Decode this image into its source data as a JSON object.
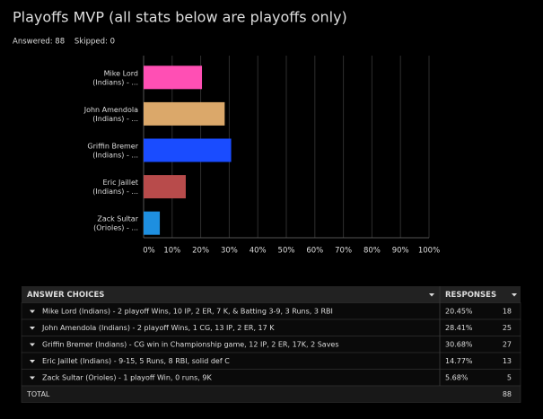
{
  "chart_data": {
    "type": "bar",
    "orientation": "horizontal",
    "title": "Playoffs MVP (all stats below are playoffs only)",
    "subtitle": "Answered: 88    Skipped: 0",
    "categories": [
      "Mike Lord (Indians) - ...",
      "John Amendola (Indians) - ...",
      "Griffin Bremer (Indians) - ...",
      "Eric Jaillet (Indians) - ...",
      "Zack Sultar (Orioles) - ..."
    ],
    "values": [
      20.45,
      28.41,
      30.68,
      14.77,
      5.68
    ],
    "colors": [
      "#ff4fb4",
      "#dba86a",
      "#1a4cff",
      "#b84b4b",
      "#1e8fe0"
    ],
    "xlim": [
      0,
      100
    ],
    "xticks": [
      {
        "value": 0,
        "label": "0%"
      },
      {
        "value": 10,
        "label": "10%"
      },
      {
        "value": 20,
        "label": "20%"
      },
      {
        "value": 30,
        "label": "30%"
      },
      {
        "value": 40,
        "label": "40%"
      },
      {
        "value": 50,
        "label": "50%"
      },
      {
        "value": 60,
        "label": "60%"
      },
      {
        "value": 70,
        "label": "70%"
      },
      {
        "value": 80,
        "label": "80%"
      },
      {
        "value": 90,
        "label": "90%"
      },
      {
        "value": 100,
        "label": "100%"
      }
    ],
    "grid": true
  },
  "table": {
    "header": [
      "ANSWER CHOICES",
      "RESPONSES"
    ],
    "rows": [
      [
        "Mike Lord (Indians) - 2 playoff Wins, 10 IP, 2 ER, 7 K, & Batting 3-9, 3 Runs, 3 RBI",
        "20.45%",
        "18"
      ],
      [
        "John Amendola (Indians) - 2 playoff Wins, 1 CG, 13 IP, 2 ER, 17 K",
        "28.41%",
        "25"
      ],
      [
        "Griffin Bremer (Indians) - CG win in Championship game, 12 IP, 2 ER, 17K, 2 Saves",
        "30.68%",
        "27"
      ],
      [
        "Eric Jaillet (Indians) - 9-15, 5 Runs, 8 RBI, solid def C",
        "14.77%",
        "13"
      ],
      [
        "Zack Sultar (Orioles) - 1 playoff Win, 0 runs, 9K",
        "5.68%",
        "5"
      ]
    ],
    "total": [
      "TOTAL",
      "88"
    ]
  }
}
